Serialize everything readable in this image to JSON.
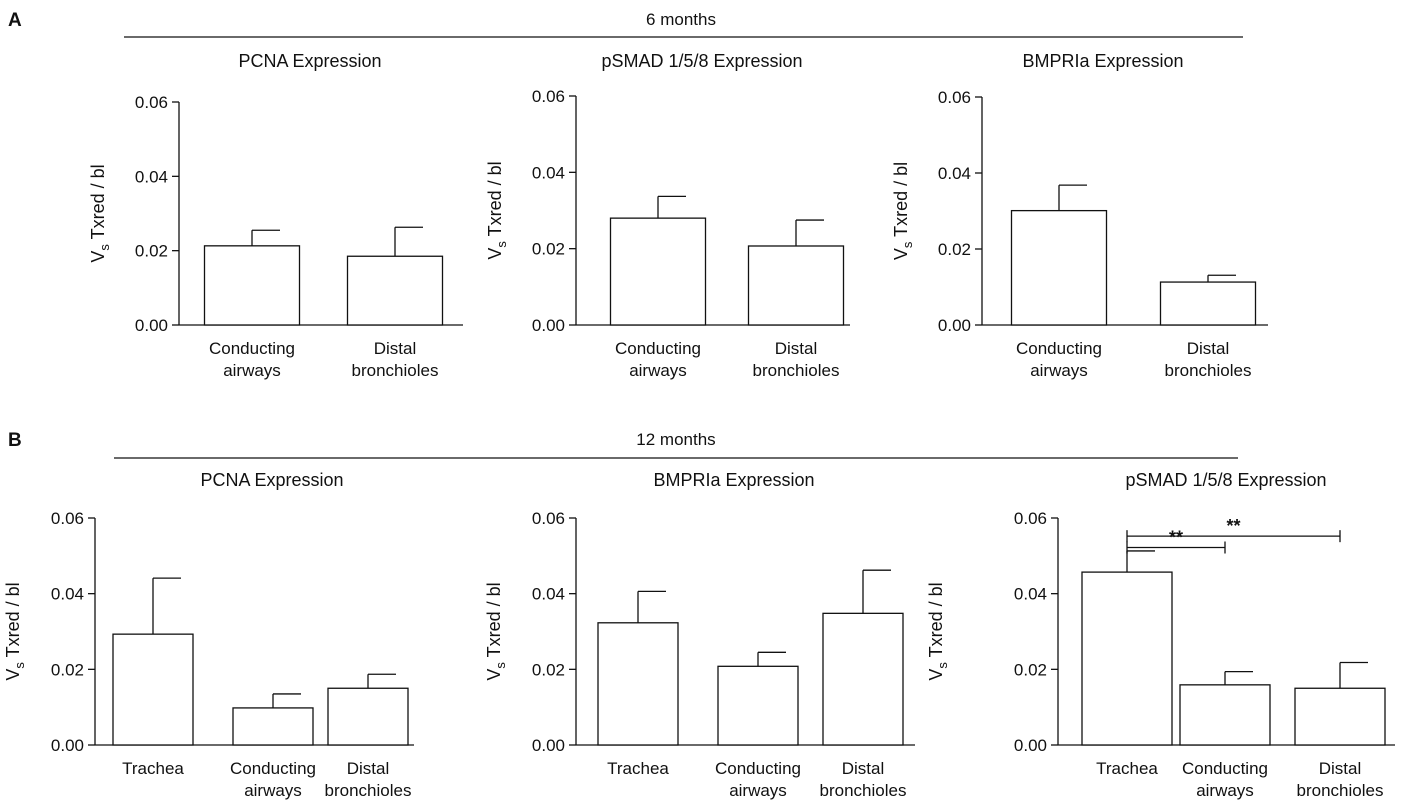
{
  "panels": [
    {
      "letter": "A",
      "group_label": "6 months"
    },
    {
      "letter": "B",
      "group_label": "12 months"
    }
  ],
  "chart_data": [
    {
      "type": "bar",
      "panel": "A",
      "title": "PCNA Expression",
      "ylabel_main": "V",
      "ylabel_sub": "s",
      "ylabel_rest": " Txred / bl",
      "ylim": [
        0,
        0.06
      ],
      "yticks": [
        "0.00",
        "0.02",
        "0.04",
        "0.06"
      ],
      "categories": [
        [
          "Conducting",
          "airways"
        ],
        [
          "Distal",
          "bronchioles"
        ]
      ],
      "values": [
        0.0213,
        0.0185
      ],
      "errors": [
        0.0042,
        0.0078
      ],
      "significance": []
    },
    {
      "type": "bar",
      "panel": "A",
      "title": "pSMAD 1/5/8 Expression",
      "ylabel_main": "V",
      "ylabel_sub": "s",
      "ylabel_rest": " Txred / bl",
      "ylim": [
        0,
        0.06
      ],
      "yticks": [
        "0.00",
        "0.02",
        "0.04",
        "0.06"
      ],
      "categories": [
        [
          "Conducting",
          "airways"
        ],
        [
          "Distal",
          "bronchioles"
        ]
      ],
      "values": [
        0.028,
        0.0207
      ],
      "errors": [
        0.0057,
        0.0068
      ],
      "significance": []
    },
    {
      "type": "bar",
      "panel": "A",
      "title": "BMPRIa Expression",
      "ylabel_main": "V",
      "ylabel_sub": "s",
      "ylabel_rest": " Txred / bl",
      "ylim": [
        0,
        0.06
      ],
      "yticks": [
        "0.00",
        "0.02",
        "0.04",
        "0.06"
      ],
      "categories": [
        [
          "Conducting",
          "airways"
        ],
        [
          "Distal",
          "bronchioles"
        ]
      ],
      "values": [
        0.0301,
        0.0113
      ],
      "errors": [
        0.0067,
        0.0018
      ],
      "significance": []
    },
    {
      "type": "bar",
      "panel": "B",
      "title": "PCNA Expression",
      "ylabel_main": "V",
      "ylabel_sub": "s",
      "ylabel_rest": " Txred / bl",
      "ylim": [
        0,
        0.06
      ],
      "yticks": [
        "0.00",
        "0.02",
        "0.04",
        "0.06"
      ],
      "categories": [
        [
          "Trachea"
        ],
        [
          "Conducting",
          "airways"
        ],
        [
          "Distal",
          "bronchioles"
        ]
      ],
      "values": [
        0.0293,
        0.0098,
        0.015
      ],
      "errors": [
        0.0148,
        0.0037,
        0.0037
      ],
      "significance": []
    },
    {
      "type": "bar",
      "panel": "B",
      "title": "BMPRIa Expression",
      "ylabel_main": "V",
      "ylabel_sub": "s",
      "ylabel_rest": " Txred / bl",
      "ylim": [
        0,
        0.06
      ],
      "yticks": [
        "0.00",
        "0.02",
        "0.04",
        "0.06"
      ],
      "categories": [
        [
          "Trachea"
        ],
        [
          "Conducting",
          "airways"
        ],
        [
          "Distal",
          "bronchioles"
        ]
      ],
      "values": [
        0.0323,
        0.0208,
        0.0348
      ],
      "errors": [
        0.0083,
        0.0037,
        0.0114
      ],
      "significance": []
    },
    {
      "type": "bar",
      "panel": "B",
      "title": "pSMAD 1/5/8 Expression",
      "ylabel_main": "V",
      "ylabel_sub": "s",
      "ylabel_rest": " Txred / bl",
      "ylim": [
        0,
        0.06
      ],
      "yticks": [
        "0.00",
        "0.02",
        "0.04",
        "0.06"
      ],
      "categories": [
        [
          "Trachea"
        ],
        [
          "Conducting",
          "airways"
        ],
        [
          "Distal",
          "bronchioles"
        ]
      ],
      "values": [
        0.0457,
        0.0159,
        0.015
      ],
      "errors": [
        0.0056,
        0.0035,
        0.0068
      ],
      "significance": [
        {
          "from": 0,
          "to": 2,
          "label": "**",
          "y": 0.0552
        },
        {
          "from": 0,
          "to": 1,
          "label": "**",
          "y": 0.0522
        }
      ]
    }
  ]
}
